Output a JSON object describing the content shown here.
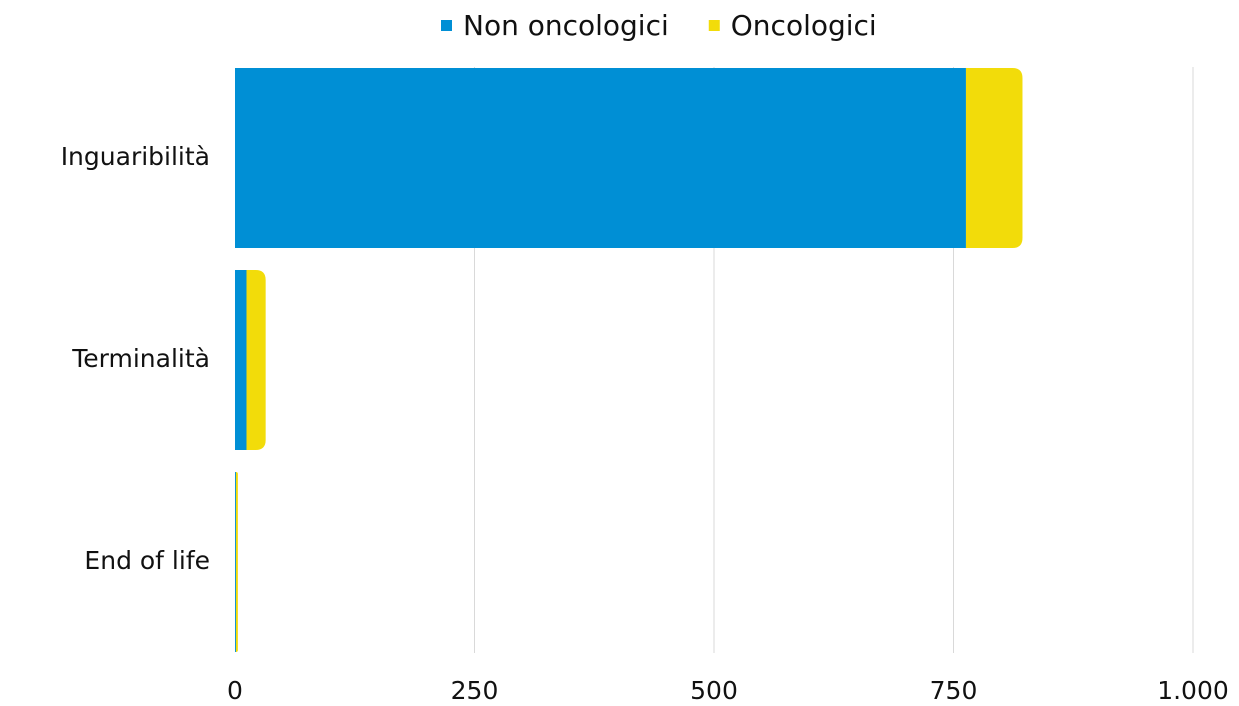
{
  "chart_data": {
    "type": "bar",
    "orientation": "horizontal",
    "stacked": true,
    "categories": [
      "Inguaribilità",
      "Terminalità",
      "End of life"
    ],
    "series": [
      {
        "name": "Non oncologici",
        "color": "#008fd5",
        "values": [
          763,
          12,
          1
        ]
      },
      {
        "name": "Oncologici",
        "color": "#f2dc0a",
        "values": [
          59,
          20,
          2
        ]
      }
    ],
    "xlim": [
      0,
      1000
    ],
    "xticks": [
      0,
      250,
      500,
      750,
      {
        "value": 1000,
        "label": "1.000"
      }
    ],
    "grid": true,
    "legend": "top"
  }
}
